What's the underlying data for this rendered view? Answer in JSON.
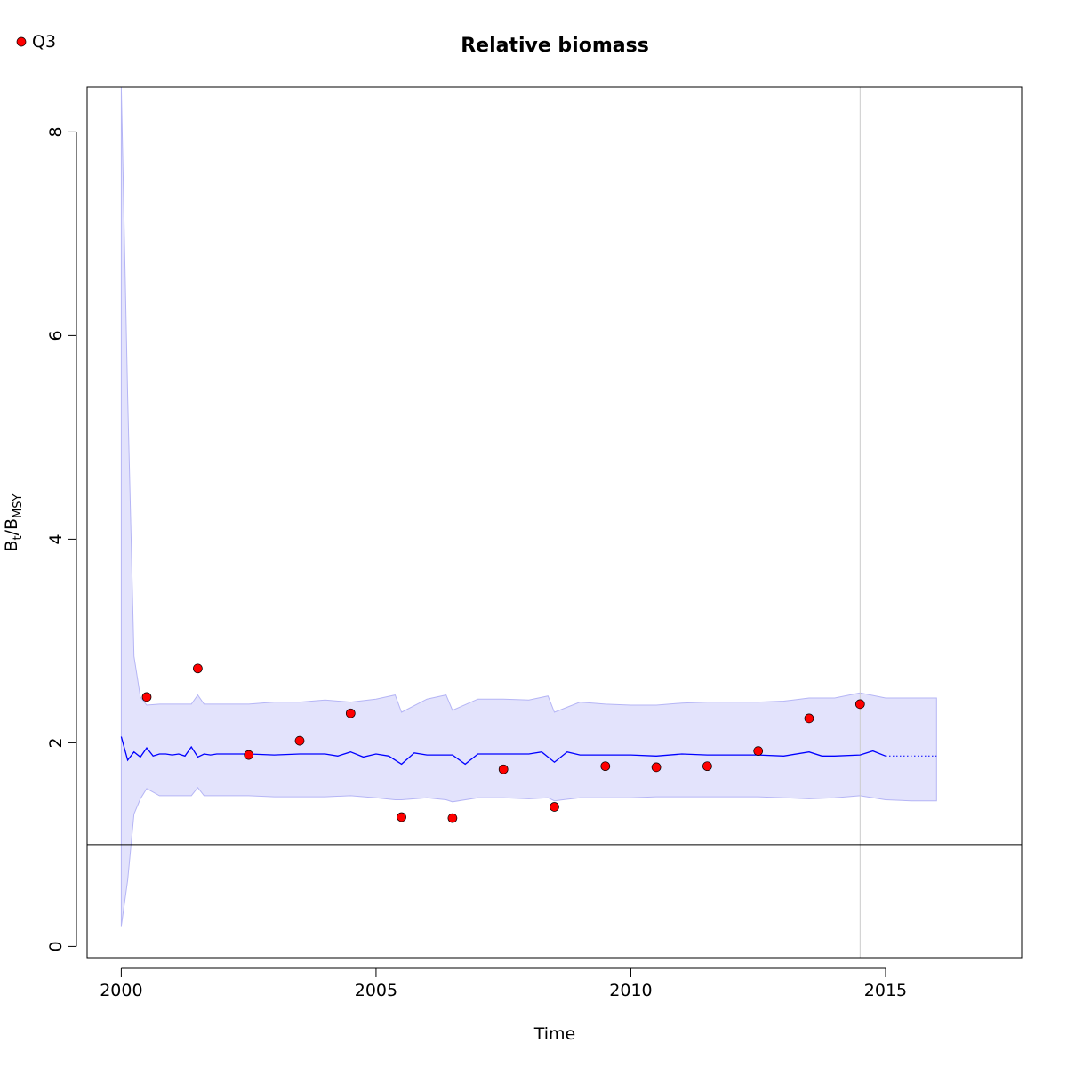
{
  "chart_data": {
    "type": "line",
    "title": "Relative biomass",
    "xlabel": "Time",
    "ylabel": {
      "main": "B",
      "sub1": "t",
      "sep": "/B",
      "sub2": "MSY"
    },
    "xlim": [
      1999.33,
      2017.67
    ],
    "ylim": [
      -0.11,
      8.44
    ],
    "xticks": [
      2000,
      2005,
      2010,
      2015
    ],
    "yticks": [
      0,
      2,
      4,
      6,
      8
    ],
    "legend": {
      "position": "top-left",
      "entries": [
        {
          "label": "Q3",
          "color": "#ff0000"
        }
      ]
    },
    "reference_lines": {
      "horizontal_y": 1,
      "vertical_x": 2014.5
    },
    "colors": {
      "line": "#0000ff",
      "band": "#e3e3fc",
      "band_edge": "#b5b5f5",
      "points": "#ff0000",
      "refline_v": "#cccccc",
      "refline_h": "#000000"
    },
    "estimate": {
      "name": "B/BMSY estimate",
      "x": [
        2000.0,
        2000.125,
        2000.25,
        2000.375,
        2000.5,
        2000.625,
        2000.75,
        2000.875,
        2001.0,
        2001.125,
        2001.25,
        2001.375,
        2001.5,
        2001.625,
        2001.75,
        2001.875,
        2002.0,
        2002.5,
        2003.0,
        2003.5,
        2004.0,
        2004.25,
        2004.5,
        2004.75,
        2005.0,
        2005.25,
        2005.5,
        2005.75,
        2006.0,
        2006.5,
        2006.75,
        2007.0,
        2007.5,
        2008.0,
        2008.25,
        2008.5,
        2008.75,
        2009.0,
        2009.5,
        2010.0,
        2010.5,
        2011.0,
        2011.5,
        2012.0,
        2012.5,
        2013.0,
        2013.5,
        2013.75,
        2014.0,
        2014.5,
        2014.75,
        2015.0
      ],
      "y": [
        2.06,
        1.83,
        1.91,
        1.86,
        1.95,
        1.87,
        1.89,
        1.89,
        1.88,
        1.89,
        1.87,
        1.96,
        1.86,
        1.89,
        1.88,
        1.89,
        1.89,
        1.89,
        1.88,
        1.89,
        1.89,
        1.87,
        1.91,
        1.86,
        1.89,
        1.87,
        1.79,
        1.9,
        1.88,
        1.88,
        1.79,
        1.89,
        1.89,
        1.89,
        1.91,
        1.81,
        1.91,
        1.88,
        1.88,
        1.88,
        1.87,
        1.89,
        1.88,
        1.88,
        1.88,
        1.87,
        1.91,
        1.87,
        1.87,
        1.88,
        1.92,
        1.87
      ]
    },
    "prediction": {
      "x": [
        2015.0,
        2016.0
      ],
      "y": [
        1.87,
        1.87
      ]
    },
    "band": {
      "x": [
        2000.0,
        2000.125,
        2000.25,
        2000.375,
        2000.5,
        2000.75,
        2001.0,
        2001.375,
        2001.5,
        2001.625,
        2002.0,
        2002.5,
        2003.0,
        2003.5,
        2004.0,
        2004.5,
        2005.0,
        2005.375,
        2005.5,
        2006.0,
        2006.375,
        2006.5,
        2007.0,
        2007.5,
        2008.0,
        2008.375,
        2008.5,
        2009.0,
        2009.5,
        2010.0,
        2010.5,
        2011.0,
        2011.5,
        2012.0,
        2012.5,
        2013.0,
        2013.5,
        2014.0,
        2014.5,
        2015.0,
        2015.5,
        2016.0
      ],
      "lower": [
        0.2,
        0.65,
        1.3,
        1.45,
        1.55,
        1.48,
        1.48,
        1.48,
        1.56,
        1.48,
        1.48,
        1.48,
        1.47,
        1.47,
        1.47,
        1.48,
        1.46,
        1.44,
        1.44,
        1.46,
        1.44,
        1.42,
        1.46,
        1.46,
        1.45,
        1.46,
        1.43,
        1.46,
        1.46,
        1.46,
        1.47,
        1.47,
        1.47,
        1.47,
        1.47,
        1.46,
        1.45,
        1.46,
        1.48,
        1.44,
        1.43,
        1.43
      ],
      "upper": [
        8.44,
        5.4,
        2.85,
        2.45,
        2.37,
        2.38,
        2.38,
        2.38,
        2.47,
        2.38,
        2.38,
        2.38,
        2.4,
        2.4,
        2.42,
        2.4,
        2.43,
        2.47,
        2.3,
        2.43,
        2.47,
        2.32,
        2.43,
        2.43,
        2.42,
        2.46,
        2.3,
        2.4,
        2.38,
        2.37,
        2.37,
        2.39,
        2.4,
        2.4,
        2.4,
        2.41,
        2.44,
        2.44,
        2.49,
        2.44,
        2.44,
        2.44
      ]
    },
    "observations": {
      "name": "Q3",
      "x": [
        2000.5,
        2001.5,
        2002.5,
        2003.5,
        2004.5,
        2005.5,
        2006.5,
        2007.5,
        2008.5,
        2009.5,
        2010.5,
        2011.5,
        2012.5,
        2013.5,
        2014.5
      ],
      "y": [
        2.45,
        2.73,
        1.88,
        2.02,
        2.29,
        1.27,
        1.26,
        1.74,
        1.37,
        1.77,
        1.76,
        1.77,
        1.92,
        2.24,
        2.38
      ]
    }
  }
}
